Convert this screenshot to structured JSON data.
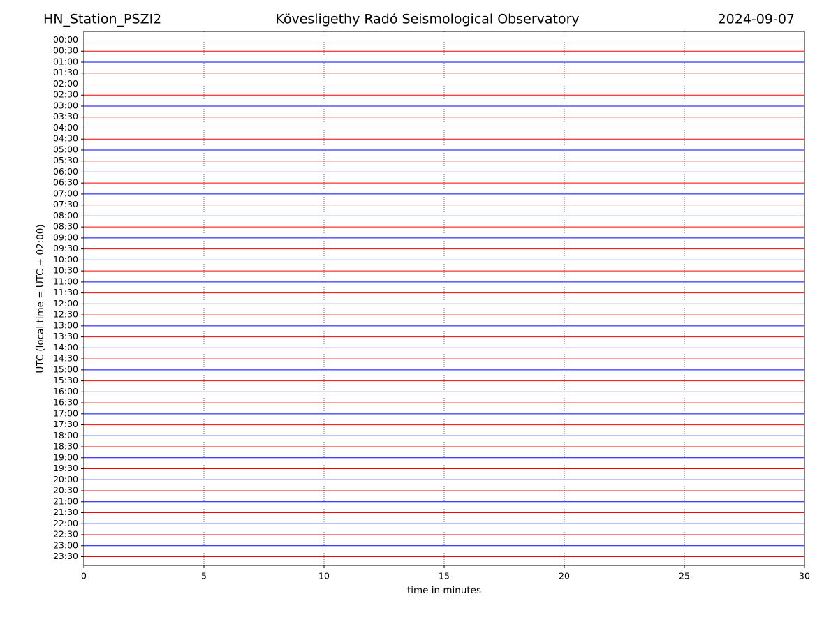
{
  "chart_data": {
    "type": "helicorder",
    "title_left": "HN_Station_PSZI2",
    "title": "Kövesligethy Radó Seismological Observatory",
    "title_right": "2024-09-07",
    "x_label": "time in minutes",
    "y_label": "UTC (local time = UTC + 02:00)",
    "categories": [
      "00:00",
      "00:30",
      "01:00",
      "01:30",
      "02:00",
      "02:30",
      "03:00",
      "03:30",
      "04:00",
      "04:30",
      "05:00",
      "05:30",
      "06:00",
      "06:30",
      "07:00",
      "07:30",
      "08:00",
      "08:30",
      "09:00",
      "09:30",
      "10:00",
      "10:30",
      "11:00",
      "11:30",
      "12:00",
      "12:30",
      "13:00",
      "13:30",
      "14:00",
      "14:30",
      "15:00",
      "15:30",
      "16:00",
      "16:30",
      "17:00",
      "17:30",
      "18:00",
      "18:30",
      "19:00",
      "19:30",
      "20:00",
      "20:30",
      "21:00",
      "21:30",
      "22:00",
      "22:30",
      "23:00",
      "23:30"
    ],
    "colors": [
      "#0000ff",
      "#ff0000"
    ],
    "xlim": [
      0,
      30
    ],
    "xticks": [
      0,
      5,
      10,
      15,
      20,
      25,
      30
    ],
    "grid": true
  }
}
